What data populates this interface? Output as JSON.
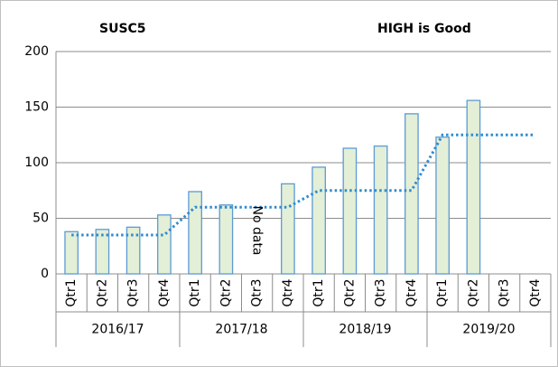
{
  "chart_data": {
    "type": "bar",
    "title": "SUSC5",
    "subtitle": "HIGH is Good",
    "annotation": "No data",
    "categories": [
      "Qtr1",
      "Qtr2",
      "Qtr3",
      "Qtr4",
      "Qtr1",
      "Qtr2",
      "Qtr3",
      "Qtr4",
      "Qtr1",
      "Qtr2",
      "Qtr3",
      "Qtr4",
      "Qtr1",
      "Qtr2",
      "Qtr3",
      "Qtr4"
    ],
    "category_groups": [
      "2016/17",
      "2017/18",
      "2018/19",
      "2019/20"
    ],
    "series": [
      {
        "type": "bar",
        "color": "#e3efd6",
        "edge_color": "#5b9bd5",
        "values": [
          38,
          40,
          42,
          53,
          74,
          62,
          null,
          81,
          96,
          113,
          115,
          144,
          123,
          156,
          null,
          null
        ]
      },
      {
        "type": "line",
        "color": "#2e8bd0",
        "dotted": true,
        "values": [
          35,
          35,
          35,
          35,
          60,
          60,
          60,
          60,
          75,
          75,
          75,
          75,
          125,
          125,
          125,
          125
        ]
      }
    ],
    "ylim": [
      0,
      200
    ],
    "yticks": [
      0,
      50,
      100,
      150,
      200
    ],
    "grid": true
  }
}
